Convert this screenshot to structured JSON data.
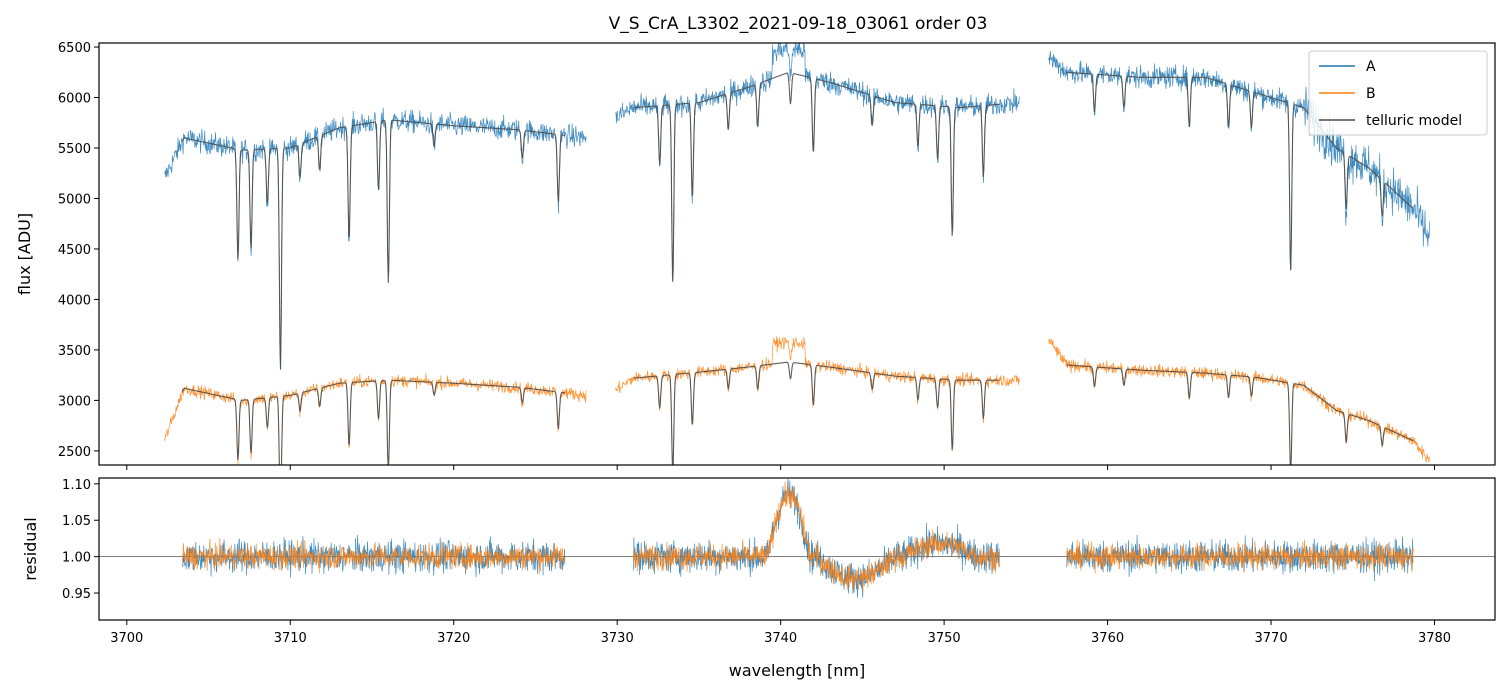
{
  "chart_data": {
    "type": "line",
    "title": "V_S_CrA_L3302_2021-09-18_03061  order 03",
    "xlabel": "wavelength [nm]",
    "xlim": [
      3698.3,
      3783.7
    ],
    "x_ticks": [
      "3700",
      "3710",
      "3720",
      "3730",
      "3740",
      "3750",
      "3760",
      "3770",
      "3780"
    ],
    "x_tick_values": [
      3700,
      3710,
      3720,
      3730,
      3740,
      3750,
      3760,
      3770,
      3780
    ],
    "top_panel": {
      "ylabel": "flux [ADU]",
      "ylim": [
        2360,
        6540
      ],
      "y_ticks": [
        "2500",
        "3000",
        "3500",
        "4000",
        "4500",
        "5000",
        "5500",
        "6000",
        "6500"
      ],
      "y_tick_values": [
        2500,
        3000,
        3500,
        4000,
        4500,
        5000,
        5500,
        6000,
        6500
      ],
      "segments": [
        {
          "x_start": 3702.3,
          "x_end": 3728.1,
          "model_start": 3703.4,
          "model_end": 3726.8,
          "A_level": [
            [
              3702.3,
              5200
            ],
            [
              3703.5,
              5600
            ],
            [
              3707,
              5480
            ],
            [
              3710,
              5500
            ],
            [
              3713,
              5700
            ],
            [
              3716,
              5780
            ],
            [
              3720,
              5720
            ],
            [
              3724,
              5680
            ],
            [
              3728.1,
              5600
            ]
          ],
          "B_level": [
            [
              3702.3,
              2600
            ],
            [
              3703.5,
              3120
            ],
            [
              3707,
              3000
            ],
            [
              3710,
              3050
            ],
            [
              3713,
              3170
            ],
            [
              3716,
              3200
            ],
            [
              3720,
              3170
            ],
            [
              3724,
              3130
            ],
            [
              3728.1,
              3050
            ]
          ]
        },
        {
          "x_start": 3729.9,
          "x_end": 3754.6,
          "model_start": 3731.0,
          "model_end": 3753.4,
          "A_level": [
            [
              3729.9,
              5800
            ],
            [
              3731,
              5900
            ],
            [
              3735,
              5950
            ],
            [
              3738,
              6100
            ],
            [
              3740.5,
              6250
            ],
            [
              3743,
              6150
            ],
            [
              3747,
              5950
            ],
            [
              3751,
              5900
            ],
            [
              3754.6,
              5950
            ]
          ],
          "B_level": [
            [
              3729.9,
              3100
            ],
            [
              3731,
              3220
            ],
            [
              3735,
              3280
            ],
            [
              3738,
              3330
            ],
            [
              3740.5,
              3380
            ],
            [
              3743,
              3330
            ],
            [
              3747,
              3240
            ],
            [
              3751,
              3200
            ],
            [
              3754.6,
              3200
            ]
          ]
        },
        {
          "x_start": 3756.4,
          "x_end": 3779.7,
          "model_start": 3757.5,
          "model_end": 3778.7,
          "A_level": [
            [
              3756.4,
              6400
            ],
            [
              3757.5,
              6250
            ],
            [
              3762,
              6200
            ],
            [
              3766,
              6200
            ],
            [
              3769,
              6050
            ],
            [
              3772,
              5900
            ],
            [
              3774,
              5500
            ],
            [
              3776,
              5300
            ],
            [
              3778.7,
              4900
            ],
            [
              3779.7,
              4600
            ]
          ],
          "B_level": [
            [
              3756.4,
              3600
            ],
            [
              3757.5,
              3350
            ],
            [
              3762,
              3300
            ],
            [
              3766,
              3270
            ],
            [
              3769,
              3230
            ],
            [
              3772,
              3150
            ],
            [
              3774,
              2900
            ],
            [
              3776,
              2800
            ],
            [
              3778.7,
              2600
            ],
            [
              3779.7,
              2400
            ]
          ]
        }
      ],
      "absorption_lines": [
        {
          "x": 3706.8,
          "depth": 0.2
        },
        {
          "x": 3707.6,
          "depth": 0.18
        },
        {
          "x": 3708.6,
          "depth": 0.1
        },
        {
          "x": 3709.4,
          "depth": 0.4
        },
        {
          "x": 3710.6,
          "depth": 0.06
        },
        {
          "x": 3711.8,
          "depth": 0.06
        },
        {
          "x": 3713.6,
          "depth": 0.2
        },
        {
          "x": 3715.4,
          "depth": 0.12
        },
        {
          "x": 3716.0,
          "depth": 0.28
        },
        {
          "x": 3718.8,
          "depth": 0.04
        },
        {
          "x": 3724.2,
          "depth": 0.05
        },
        {
          "x": 3726.4,
          "depth": 0.12
        },
        {
          "x": 3732.6,
          "depth": 0.1
        },
        {
          "x": 3733.4,
          "depth": 0.3
        },
        {
          "x": 3734.6,
          "depth": 0.16
        },
        {
          "x": 3736.8,
          "depth": 0.06
        },
        {
          "x": 3738.6,
          "depth": 0.07
        },
        {
          "x": 3740.6,
          "depth": 0.05
        },
        {
          "x": 3742.0,
          "depth": 0.12
        },
        {
          "x": 3745.6,
          "depth": 0.05
        },
        {
          "x": 3748.4,
          "depth": 0.07
        },
        {
          "x": 3749.6,
          "depth": 0.09
        },
        {
          "x": 3750.5,
          "depth": 0.22
        },
        {
          "x": 3752.4,
          "depth": 0.12
        },
        {
          "x": 3759.2,
          "depth": 0.06
        },
        {
          "x": 3761.0,
          "depth": 0.05
        },
        {
          "x": 3765.0,
          "depth": 0.08
        },
        {
          "x": 3767.4,
          "depth": 0.07
        },
        {
          "x": 3768.8,
          "depth": 0.06
        },
        {
          "x": 3771.2,
          "depth": 0.28
        },
        {
          "x": 3774.6,
          "depth": 0.1
        },
        {
          "x": 3776.8,
          "depth": 0.07
        }
      ]
    },
    "bottom_panel": {
      "ylabel": "residual",
      "ylim": [
        0.913,
        1.108
      ],
      "y_ticks": [
        "0.95",
        "1.00",
        "1.05",
        "1.10"
      ],
      "y_tick_values": [
        0.95,
        1.0,
        1.05,
        1.1
      ],
      "reference_line": 1.0,
      "segments": [
        [
          3703.4,
          3726.8
        ],
        [
          3731.0,
          3753.4
        ],
        [
          3757.5,
          3778.7
        ]
      ],
      "bumps": [
        {
          "x_start": 3739.2,
          "x_end": 3741.8,
          "value": 1.085
        },
        {
          "x_start": 3742.2,
          "x_end": 3747.0,
          "value": 0.97
        },
        {
          "x_start": 3747.5,
          "x_end": 3752.0,
          "value": 1.018
        }
      ]
    },
    "series": [
      {
        "name": "A",
        "color": "#1f77b4"
      },
      {
        "name": "B",
        "color": "#ff7f0e"
      },
      {
        "name": "telluric model",
        "color": "#4d4d4d"
      }
    ],
    "legend_position": "top-right"
  }
}
